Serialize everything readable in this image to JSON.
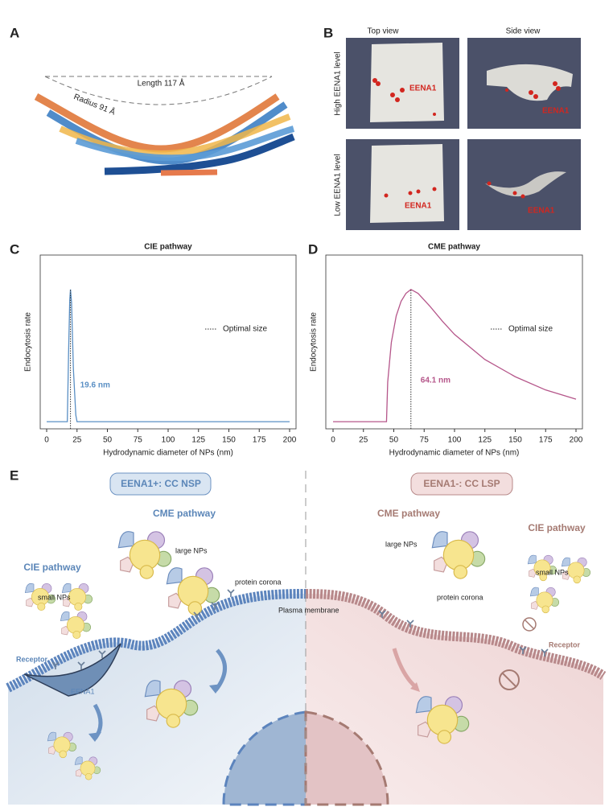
{
  "panel_labels": [
    "A",
    "B",
    "C",
    "D",
    "E"
  ],
  "structure": {
    "length_label": "Length 117 Å",
    "radius_label": "Radius 91 Å"
  },
  "simulation": {
    "columns": [
      "Top view",
      "Side view"
    ],
    "rows": [
      "High EENA1 level",
      "Low EENA1 level"
    ],
    "marker_labels": [
      "EENA1",
      "EENA1",
      "EENA1",
      "EENA1"
    ]
  },
  "chart_data": [
    {
      "type": "line",
      "title": "CIE pathway",
      "x_label": "Hydrodynamic diameter of NPs (nm)",
      "y_label": "Endocytosis rate",
      "x": [
        0,
        17,
        18,
        19,
        19.6,
        20.5,
        22,
        24,
        25,
        200
      ],
      "series": [
        {
          "color": "#5a8fc4",
          "values": [
            0,
            0,
            0.5,
            0.92,
            1,
            0.9,
            0.4,
            0.05,
            0,
            0
          ]
        }
      ],
      "xlim": [
        -5.3,
        205.3
      ],
      "xticks": [
        0,
        25,
        50,
        75,
        100,
        125,
        150,
        175,
        200
      ],
      "ylim": [
        -0.054,
        1.26
      ],
      "grid": false,
      "legend": "Optimal size",
      "optimal_x": 19.6,
      "optimal_x_label": "19.6 nm"
    },
    {
      "type": "line",
      "title": "CME pathway",
      "x_label": "Hydrodynamic diameter of NPs (nm)",
      "y_label": "Endocytosis rate",
      "x": [
        0,
        44,
        45,
        48,
        52,
        56,
        60,
        64.1,
        70,
        80,
        90,
        100,
        125,
        150,
        175,
        200
      ],
      "series": [
        {
          "color": "#b5568a",
          "values": [
            0,
            0,
            0.3,
            0.6,
            0.8,
            0.91,
            0.97,
            1,
            0.97,
            0.87,
            0.76,
            0.66,
            0.47,
            0.34,
            0.24,
            0.17
          ]
        }
      ],
      "xlim": [
        -5.96,
        205.3
      ],
      "xticks": [
        0,
        25,
        50,
        75,
        100,
        125,
        150,
        175,
        200
      ],
      "ylim": [
        -0.054,
        1.26
      ],
      "grid": false,
      "legend": "Optimal size",
      "optimal_x": 64.1,
      "optimal_x_label": "64.1 nm"
    }
  ],
  "schematic": {
    "left_badge": "EENA1+: CC NSP",
    "right_badge": "EENA1-: CC LSP",
    "left_cme": "CME pathway",
    "left_cie": "CIE pathway",
    "right_cme": "CME pathway",
    "right_cie": "CIE pathway",
    "left_large": "large NPs",
    "left_small": "small NPs",
    "left_corona": "protein corona",
    "right_large": "large NPs",
    "right_small": "small NPs",
    "right_corona": "protein corona",
    "membrane": "Plasma membrane",
    "left_receptor": "Receptor",
    "right_receptor": "Receptor",
    "eena1": "EENA1"
  }
}
